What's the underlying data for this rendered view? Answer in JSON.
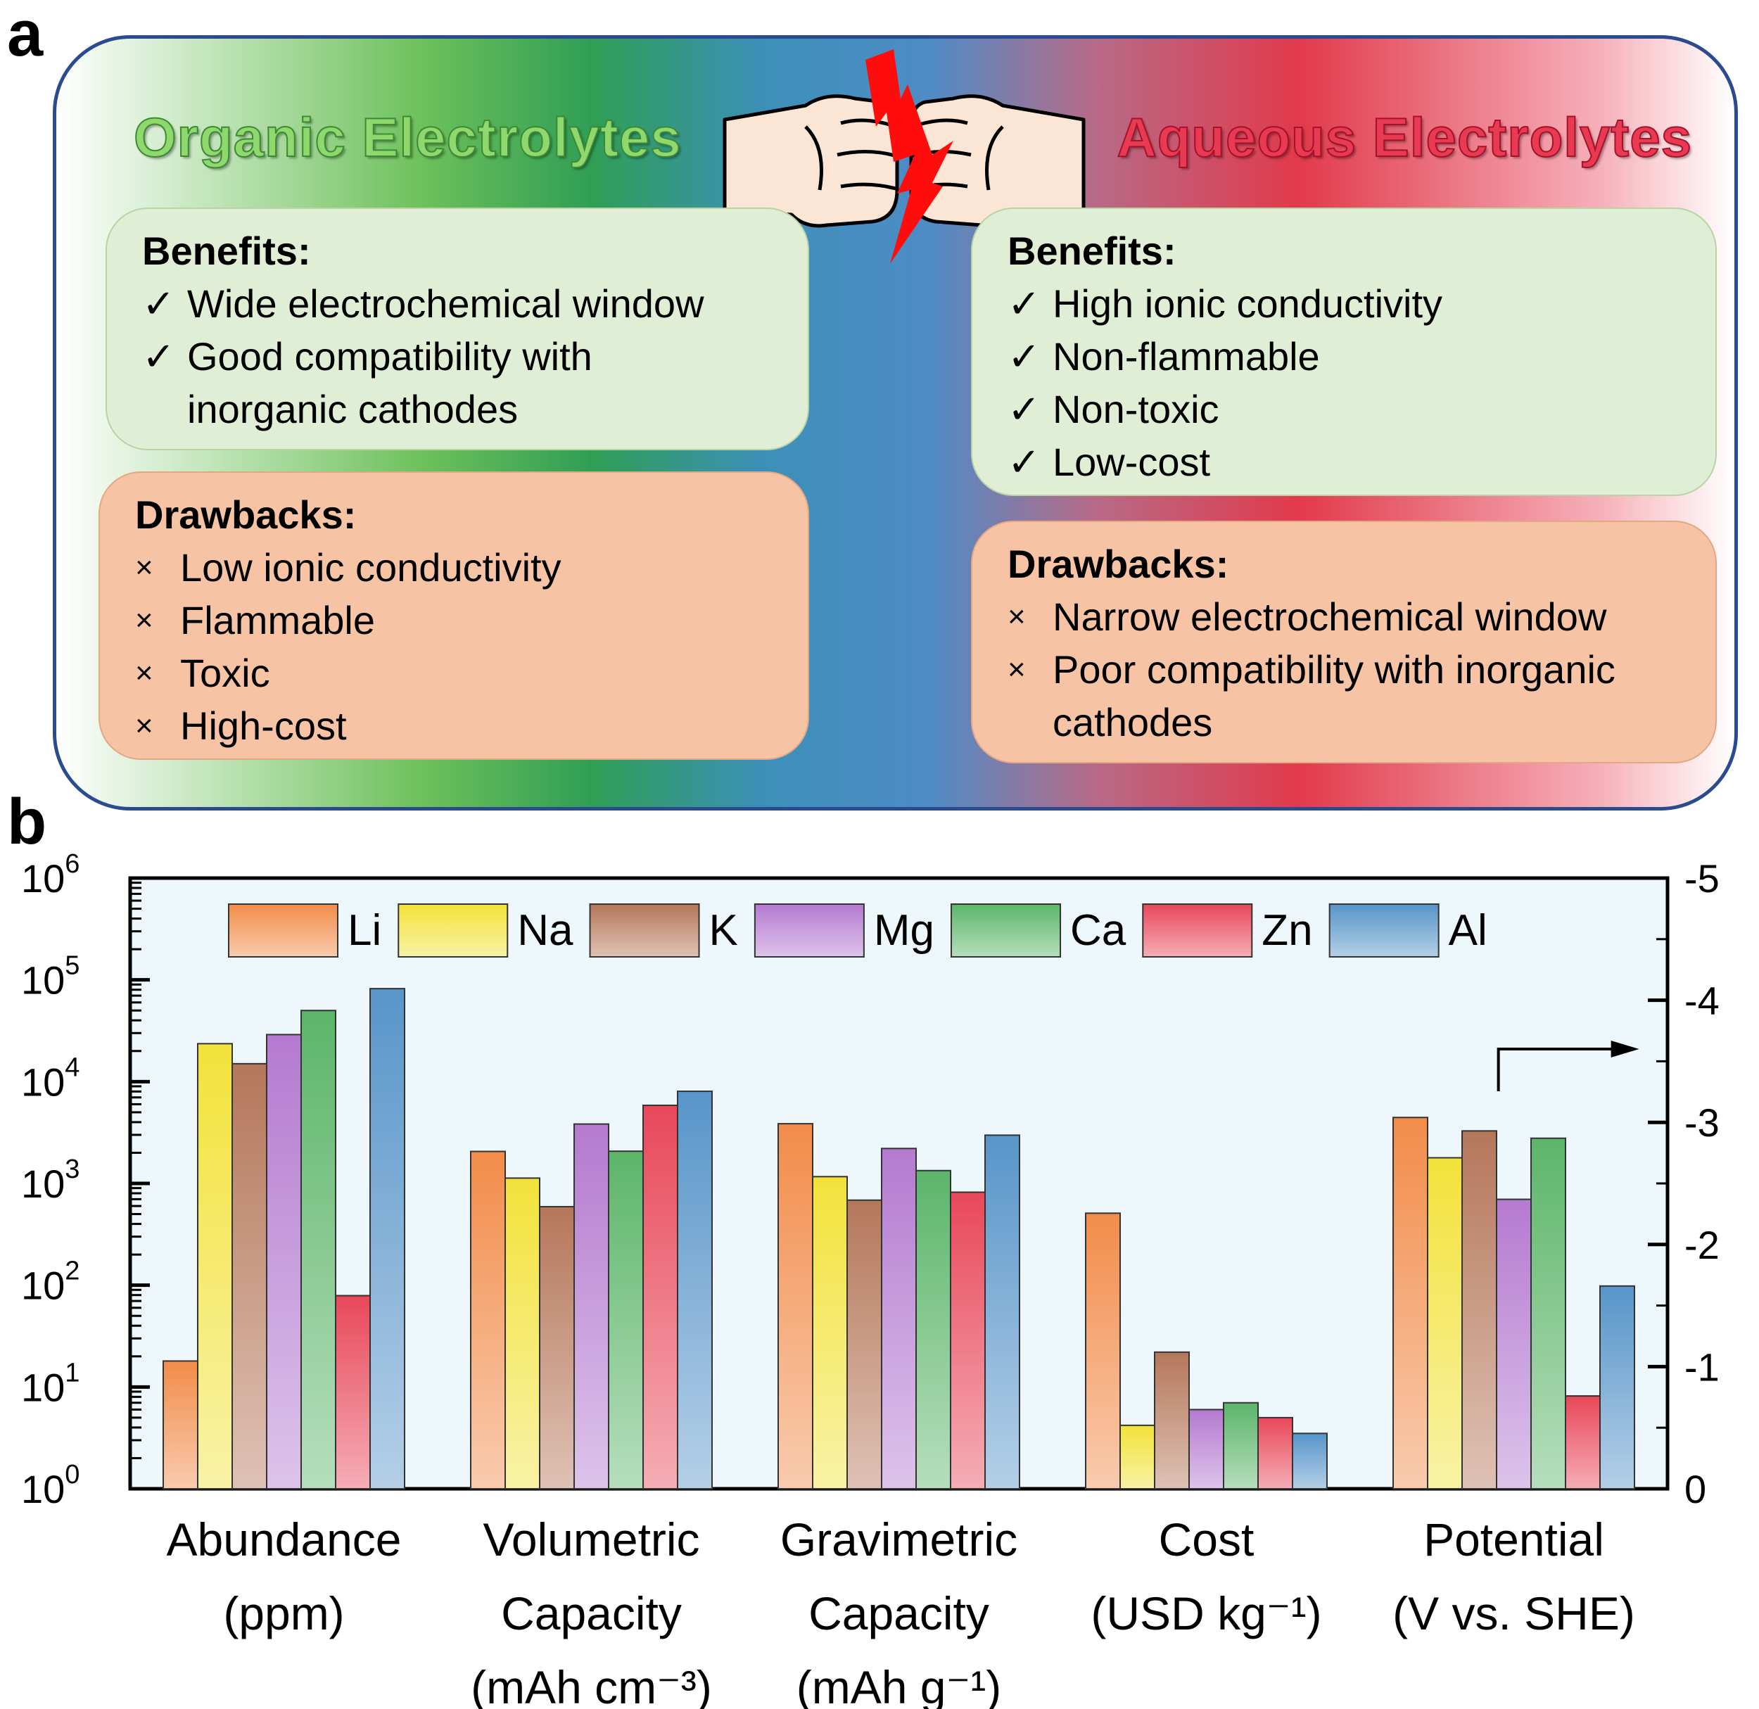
{
  "panels": {
    "a": "a",
    "b": "b"
  },
  "comparison": {
    "left": {
      "title": "Organic Electrolytes",
      "benefits_heading": "Benefits:",
      "benefits": [
        "Wide electrochemical window",
        "Good compatibility with inorganic cathodes"
      ],
      "drawbacks_heading": "Drawbacks:",
      "drawbacks": [
        "Low ionic conductivity",
        "Flammable",
        "Toxic",
        "High-cost"
      ]
    },
    "vs": "VS",
    "right": {
      "title": "Aqueous Electrolytes",
      "benefits_heading": "Benefits:",
      "benefits": [
        "High ionic conductivity",
        "Non-flammable",
        "Non-toxic",
        "Low-cost"
      ],
      "drawbacks_heading": "Drawbacks:",
      "drawbacks": [
        "Narrow electrochemical window",
        "Poor compatibility with inorganic cathodes"
      ]
    },
    "check_mark": "✓",
    "cross_mark": "×"
  },
  "chart_data": {
    "type": "bar",
    "title": "",
    "categories": [
      {
        "lines": [
          "Abundance",
          "(ppm)"
        ]
      },
      {
        "lines": [
          "Volumetric",
          "Capacity",
          "(mAh cm⁻³)"
        ]
      },
      {
        "lines": [
          "Gravimetric",
          "Capacity",
          "(mAh g⁻¹)"
        ]
      },
      {
        "lines": [
          "Cost",
          "(USD kg⁻¹)"
        ]
      },
      {
        "lines": [
          "Potential",
          "(V vs. SHE)"
        ]
      }
    ],
    "series": [
      {
        "name": "Li",
        "color": "#f28c4a",
        "values": [
          18,
          2062,
          3861,
          510,
          -3.04
        ]
      },
      {
        "name": "Na",
        "color": "#f2e23a",
        "values": [
          23600,
          1128,
          1166,
          4.2,
          -2.71
        ]
      },
      {
        "name": "K",
        "color": "#b5775a",
        "values": [
          15000,
          591,
          685,
          22,
          -2.93
        ]
      },
      {
        "name": "Mg",
        "color": "#b47ad0",
        "values": [
          29000,
          3833,
          2205,
          6,
          -2.37
        ]
      },
      {
        "name": "Ca",
        "color": "#5cb56a",
        "values": [
          50000,
          2073,
          1337,
          7,
          -2.87
        ]
      },
      {
        "name": "Zn",
        "color": "#e8485a",
        "values": [
          79,
          5851,
          820,
          5,
          -0.76
        ]
      },
      {
        "name": "Al",
        "color": "#5895c9",
        "values": [
          82000,
          8040,
          2980,
          3.5,
          -1.66
        ]
      }
    ],
    "left_axis": {
      "scale": "log",
      "ylim": [
        1,
        1000000
      ],
      "ticks": [
        "10^0",
        "10^1",
        "10^2",
        "10^3",
        "10^4",
        "10^5",
        "10^6"
      ]
    },
    "right_axis": {
      "scale": "linear",
      "ylim": [
        0,
        -5
      ],
      "ticks": [
        "0",
        "-1",
        "-2",
        "-3",
        "-4",
        "-5"
      ],
      "applies_to": "Potential (V vs. SHE)"
    },
    "legend": "top",
    "grid": false
  }
}
